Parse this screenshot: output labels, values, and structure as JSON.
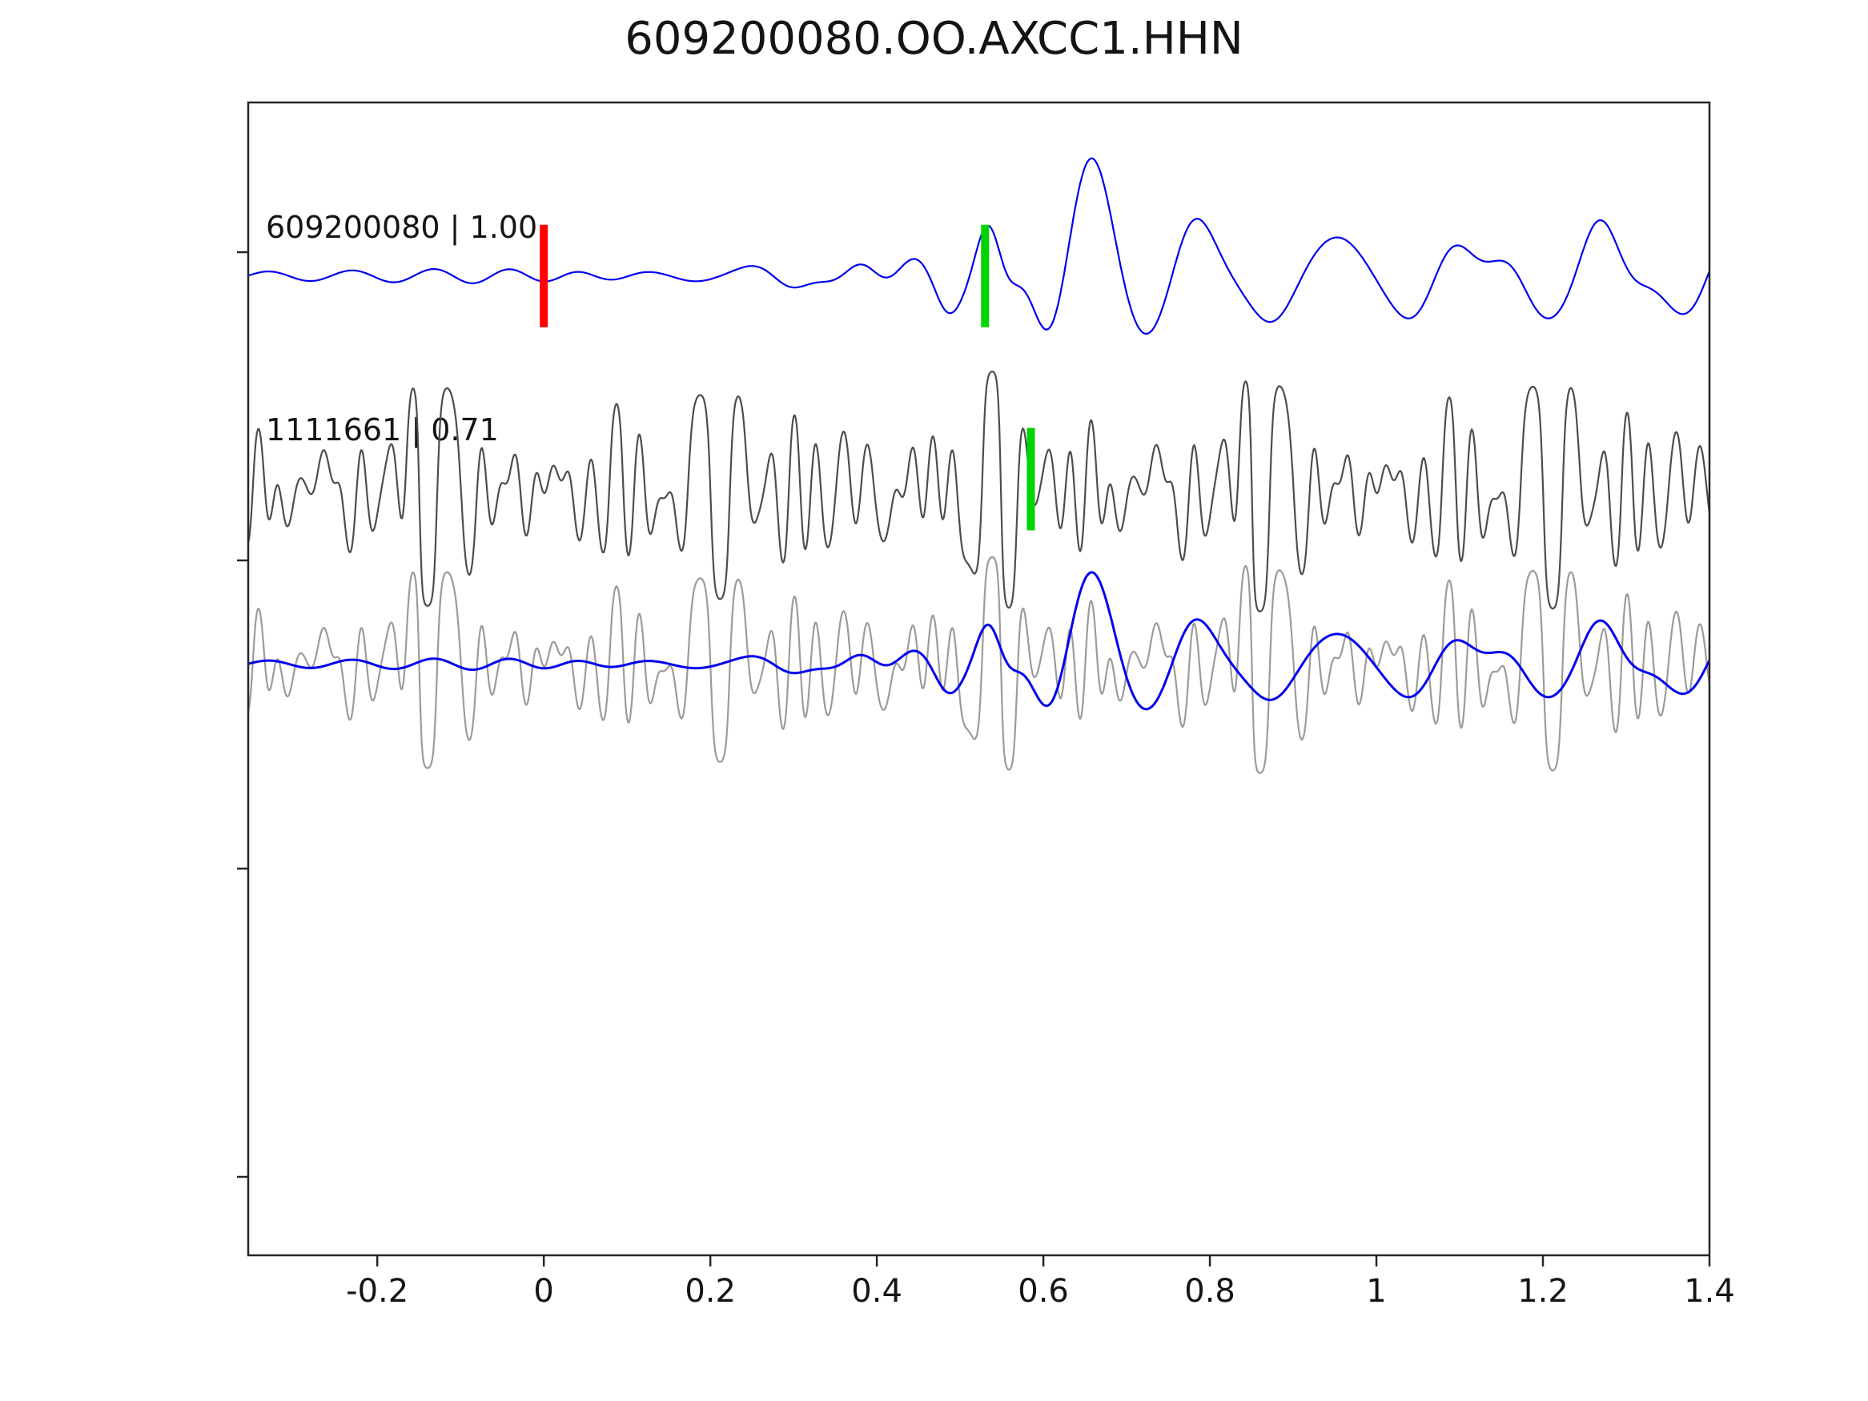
{
  "title": "609200080.OO.AXCC1.HHN",
  "colors": {
    "template_trace": "#0000ee",
    "detection_trace": "#4d4d4d",
    "overlay_gray": "#9b9b9b",
    "origin_marker": "#ff0000",
    "pick_marker": "#00d400",
    "axis": "#262626",
    "text": "#141414",
    "background": "#ffffff"
  },
  "chart_data": {
    "type": "line",
    "title": "609200080.OO.AXCC1.HHN",
    "xlabel": "",
    "ylabel": "",
    "grid": false,
    "legend": "none",
    "xlim": [
      -0.355,
      1.4
    ],
    "x_ticks": [
      -0.2,
      0,
      0.2,
      0.4,
      0.6,
      0.8,
      1,
      1.2,
      1.4
    ],
    "x_tick_labels": [
      "-0.2",
      "0",
      "0.2",
      "0.4",
      "0.6",
      "0.8",
      "1",
      "1.2",
      "1.4"
    ],
    "rows": [
      {
        "name": "template",
        "label": "609200080 | 1.00",
        "color": "#0000ee",
        "stroke_width": 2.2,
        "baseline_frac": 0.197,
        "markers": [
          {
            "x": 0.0,
            "color": "#ff0000",
            "name": "template-origin-marker",
            "dy": 0
          },
          {
            "x": 0.53,
            "color": "#00d400",
            "name": "template-pick-marker",
            "dy": 0
          }
        ]
      },
      {
        "name": "detection",
        "label": "1111661 | 0.71",
        "color": "#4d4d4d",
        "stroke_width": 2.2,
        "baseline_frac": 0.35,
        "markers": [
          {
            "x": 0.585,
            "color": "#00d400",
            "name": "detection-pick-marker",
            "dy": -14
          }
        ]
      },
      {
        "name": "overlay",
        "label": "",
        "baseline_frac": 0.474,
        "traces": [
          {
            "ref": "detection",
            "color": "#9b9b9b",
            "scale": 0.9,
            "width": 2.2
          },
          {
            "ref": "template",
            "color": "#0000ee",
            "scale": 0.78,
            "width": 3
          }
        ],
        "markers": []
      }
    ],
    "waveforms": {
      "template": {
        "type": "gabor_sum",
        "components": [
          [
            -0.15,
            0.28,
            10,
            7,
            0.4
          ],
          [
            0.12,
            0.14,
            12,
            9,
            2.0
          ],
          [
            0.22,
            0.07,
            11,
            14,
            0.8
          ],
          [
            0.3,
            0.05,
            10,
            22,
            4.5
          ],
          [
            0.38,
            0.05,
            11,
            26,
            1.0
          ],
          [
            0.445,
            0.04,
            10,
            30,
            2.2
          ],
          [
            0.495,
            0.025,
            12,
            30,
            5.5
          ],
          [
            0.535,
            0.022,
            13,
            52,
            1.57
          ],
          [
            0.6,
            0.03,
            9,
            35,
            4.0
          ],
          [
            0.658,
            0.042,
            6.5,
            140,
            1.57
          ],
          [
            0.775,
            0.045,
            8,
            68,
            1.2
          ],
          [
            0.87,
            0.05,
            8,
            45,
            4.8
          ],
          [
            0.97,
            0.07,
            7.5,
            48,
            2.2
          ],
          [
            1.08,
            0.06,
            9,
            45,
            0.3
          ],
          [
            1.18,
            0.05,
            9,
            50,
            3.5
          ],
          [
            1.27,
            0.04,
            9,
            62,
            1.57
          ],
          [
            1.36,
            0.05,
            8,
            40,
            4.6
          ],
          [
            1.42,
            0.04,
            9,
            30,
            1.0
          ]
        ]
      },
      "detection": {
        "type": "noise_sum",
        "amp": 150,
        "div": 3.2,
        "components": [
          [
            11,
            0.55,
            1.9
          ],
          [
            14,
            0.8,
            5.1
          ],
          [
            17,
            0.95,
            0.7
          ],
          [
            20,
            1.0,
            3.3
          ],
          [
            23,
            1.0,
            5.9
          ],
          [
            26,
            0.9,
            1.5
          ],
          [
            29,
            0.85,
            4.2
          ],
          [
            33,
            0.75,
            2.6
          ],
          [
            37,
            0.6,
            0.2
          ],
          [
            42,
            0.45,
            3.9
          ],
          [
            48,
            0.3,
            5.0
          ]
        ],
        "envelope": [
          [
            -0.355,
            0.95
          ],
          [
            -0.1,
            1.0
          ],
          [
            0.1,
            0.92
          ],
          [
            0.3,
            0.98
          ],
          [
            0.5,
            1.0
          ],
          [
            0.62,
            1.08
          ],
          [
            0.8,
            1.1
          ],
          [
            0.95,
            0.95
          ],
          [
            1.1,
            1.0
          ],
          [
            1.25,
            1.05
          ],
          [
            1.4,
            0.95
          ]
        ]
      }
    }
  }
}
